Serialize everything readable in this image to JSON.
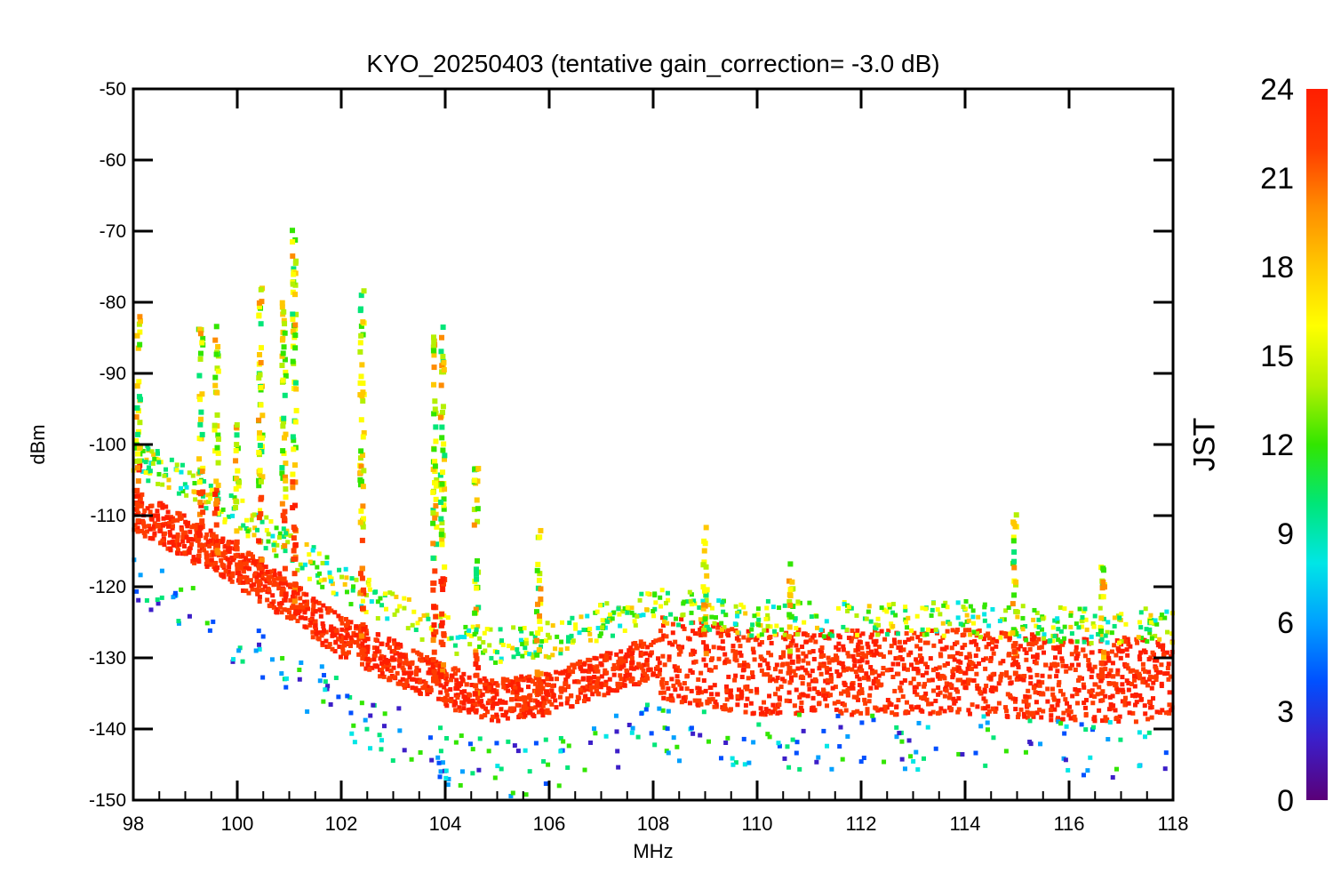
{
  "chart_data": {
    "type": "scatter",
    "title": "KYO_20250403 (tentative gain_correction= -3.0 dB)",
    "xlabel": "MHz",
    "ylabel": "dBm",
    "xlim": [
      98,
      118
    ],
    "ylim": [
      -150,
      -50
    ],
    "xticks": [
      "98",
      "100",
      "102",
      "104",
      "106",
      "108",
      "110",
      "112",
      "114",
      "116",
      "118"
    ],
    "yticks": [
      "-50",
      "-60",
      "-70",
      "-80",
      "-90",
      "-100",
      "-110",
      "-120",
      "-130",
      "-140",
      "-150"
    ],
    "colorbar": {
      "label": "JST",
      "range": [
        0,
        24
      ],
      "ticks": [
        "0",
        "3",
        "6",
        "9",
        "12",
        "15",
        "18",
        "21",
        "24"
      ],
      "colormap": [
        "#5a0078",
        "#3c1ec8",
        "#0050ff",
        "#00a0ff",
        "#00e6e6",
        "#00e678",
        "#32e600",
        "#b4f000",
        "#ffff00",
        "#ffc800",
        "#ff8c00",
        "#ff3c00",
        "#ff1e00"
      ]
    },
    "noise_floor": [
      {
        "x": 98,
        "y": -109
      },
      {
        "x": 100,
        "y": -117
      },
      {
        "x": 102,
        "y": -127
      },
      {
        "x": 104,
        "y": -134
      },
      {
        "x": 105,
        "y": -136
      },
      {
        "x": 106,
        "y": -135
      },
      {
        "x": 108,
        "y": -130
      },
      {
        "x": 110,
        "y": -132
      },
      {
        "x": 112,
        "y": -132
      },
      {
        "x": 114,
        "y": -132
      },
      {
        "x": 116,
        "y": -133
      },
      {
        "x": 118,
        "y": -133
      }
    ],
    "peak_envelope": [
      {
        "x": 98.1,
        "y": -82
      },
      {
        "x": 99.3,
        "y": -83
      },
      {
        "x": 99.6,
        "y": -82
      },
      {
        "x": 100.0,
        "y": -97
      },
      {
        "x": 100.45,
        "y": -76
      },
      {
        "x": 100.9,
        "y": -79
      },
      {
        "x": 101.1,
        "y": -69
      },
      {
        "x": 102.4,
        "y": -78
      },
      {
        "x": 103.8,
        "y": -84
      },
      {
        "x": 103.95,
        "y": -83
      },
      {
        "x": 104.6,
        "y": -103
      },
      {
        "x": 105.8,
        "y": -112
      },
      {
        "x": 109.0,
        "y": -110
      },
      {
        "x": 110.65,
        "y": -115
      },
      {
        "x": 114.95,
        "y": -109
      },
      {
        "x": 116.65,
        "y": -117
      }
    ]
  }
}
